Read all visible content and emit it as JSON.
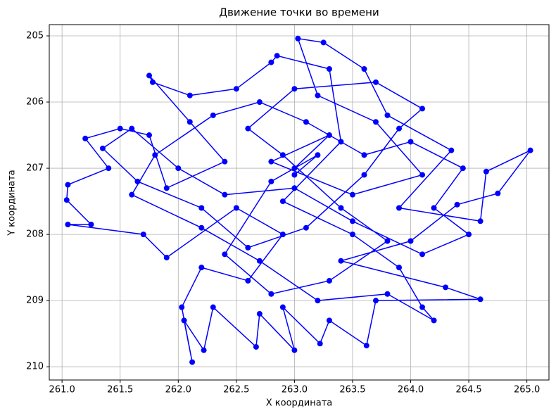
{
  "chart_data": {
    "type": "line",
    "title": "Движение точки во времени",
    "xlabel": "X координата",
    "ylabel": "Y координата",
    "color": "#0000ff",
    "markers": true,
    "grid": true,
    "y_inverted": true,
    "xlim": [
      260.89,
      265.19
    ],
    "ylim": [
      204.83,
      210.2
    ],
    "xticks": [
      {
        "value": 261,
        "label": "261.0"
      },
      261.5,
      {
        "value": 262,
        "label": "262.0"
      },
      262.5,
      {
        "value": 263,
        "label": "263.0"
      },
      263.5,
      {
        "value": 264,
        "label": "264.0"
      },
      264.5,
      {
        "value": 265,
        "label": "265.0"
      }
    ],
    "yticks": [
      205,
      206,
      207,
      208,
      209,
      210
    ],
    "x": [
      263.0,
      263.3,
      262.8,
      263.5,
      264.1,
      263.7,
      263.2,
      263.03,
      263.25,
      263.6,
      263.8,
      264.35,
      263.9,
      264.6,
      264.65,
      265.03,
      264.75,
      264.4,
      264.0,
      263.4,
      264.3,
      264.6,
      263.7,
      263.62,
      263.3,
      263.22,
      262.9,
      263.0,
      262.7,
      262.67,
      262.3,
      262.22,
      262.05,
      262.12,
      262.03,
      262.2,
      262.6,
      262.9,
      262.5,
      261.9,
      261.7,
      261.05,
      261.25,
      261.04,
      261.05,
      261.4,
      261.2,
      261.5,
      261.75,
      261.9,
      262.4,
      262.1,
      261.75,
      261.78,
      262.1,
      262.5,
      262.8,
      262.85,
      263.3,
      263.4,
      262.9,
      263.5,
      263.9,
      264.1,
      264.2,
      263.8,
      263.2,
      262.7,
      262.2,
      261.6,
      261.8,
      262.3,
      262.7,
      263.1,
      263.6,
      264.0,
      264.45,
      264.2,
      264.5,
      264.1,
      263.5,
      263.0,
      262.4,
      262.0,
      261.6,
      261.35,
      261.65,
      262.2,
      262.6,
      263.1,
      263.6,
      263.9,
      264.1,
      263.7,
      263.0,
      262.6,
      262.9,
      263.4,
      263.8,
      263.3,
      262.8,
      262.4,
      262.8,
      263.2,
      263.0
    ],
    "values": [
      207.0,
      206.5,
      206.9,
      207.4,
      207.1,
      206.3,
      205.9,
      205.04,
      205.1,
      205.5,
      206.2,
      206.73,
      207.6,
      207.8,
      207.05,
      206.73,
      207.38,
      207.55,
      208.1,
      208.4,
      208.8,
      208.98,
      209.0,
      209.68,
      209.3,
      209.65,
      209.1,
      209.75,
      209.2,
      209.7,
      209.1,
      209.75,
      209.3,
      209.93,
      209.1,
      208.5,
      208.7,
      208.0,
      207.6,
      208.35,
      208.0,
      207.85,
      207.85,
      207.48,
      207.25,
      207.0,
      206.55,
      206.4,
      206.5,
      207.3,
      206.9,
      206.3,
      205.6,
      205.7,
      205.9,
      205.8,
      205.4,
      205.3,
      205.5,
      206.6,
      207.5,
      208.0,
      208.5,
      209.1,
      209.3,
      208.9,
      209.0,
      208.4,
      207.9,
      207.4,
      206.8,
      206.2,
      206.0,
      206.3,
      206.8,
      206.6,
      207.0,
      207.6,
      208.0,
      208.3,
      207.8,
      207.3,
      207.4,
      207.0,
      206.4,
      206.7,
      207.2,
      207.6,
      208.2,
      207.9,
      207.1,
      206.4,
      206.1,
      205.7,
      205.8,
      206.4,
      206.8,
      207.6,
      208.1,
      208.7,
      208.9,
      208.3,
      207.2,
      206.8,
      207.1
    ]
  }
}
